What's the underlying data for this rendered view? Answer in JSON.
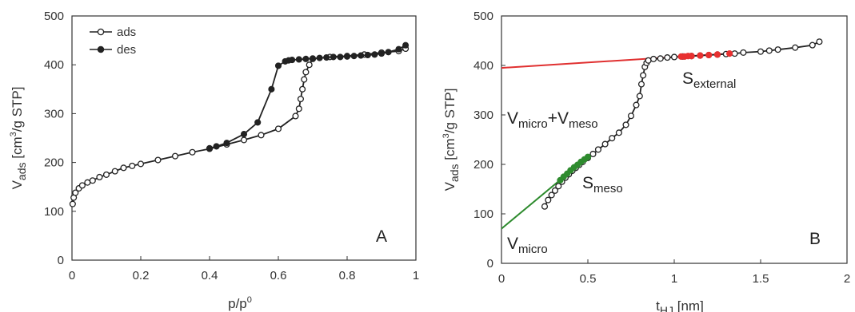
{
  "chart_data": [
    {
      "type": "line",
      "panel_label": "A",
      "xlabel_base": "p/p",
      "xlabel_sup": "0",
      "ylabel_main": "V",
      "ylabel_sub": "ads",
      "ylabel_rest1": " [cm",
      "ylabel_sup": "3",
      "ylabel_rest2": "/g STP]",
      "xlim": [
        0,
        1
      ],
      "ylim": [
        0,
        500
      ],
      "xticks": [
        "0",
        "0.2",
        "0.4",
        "0.6",
        "0.8",
        "1"
      ],
      "yticks": [
        "0",
        "100",
        "200",
        "300",
        "400",
        "500"
      ],
      "legend": [
        "ads",
        "des"
      ],
      "series": [
        {
          "name": "ads",
          "marker": "open-circle",
          "x": [
            0.002,
            0.005,
            0.01,
            0.02,
            0.03,
            0.045,
            0.06,
            0.08,
            0.1,
            0.125,
            0.15,
            0.175,
            0.2,
            0.25,
            0.3,
            0.35,
            0.4,
            0.45,
            0.5,
            0.55,
            0.6,
            0.65,
            0.66,
            0.665,
            0.67,
            0.675,
            0.68,
            0.69,
            0.7,
            0.75,
            0.8,
            0.85,
            0.9,
            0.95,
            0.97
          ],
          "y": [
            115,
            128,
            138,
            147,
            153,
            159,
            163,
            170,
            175,
            182,
            189,
            193,
            197,
            205,
            213,
            221,
            228,
            237,
            246,
            256,
            269,
            295,
            310,
            330,
            350,
            370,
            385,
            400,
            412,
            416,
            418,
            421,
            425,
            428,
            433
          ]
        },
        {
          "name": "des",
          "marker": "filled-circle",
          "x": [
            0.97,
            0.95,
            0.92,
            0.9,
            0.88,
            0.86,
            0.84,
            0.82,
            0.8,
            0.78,
            0.76,
            0.74,
            0.72,
            0.7,
            0.68,
            0.66,
            0.64,
            0.63,
            0.62,
            0.6,
            0.58,
            0.54,
            0.5,
            0.45,
            0.42,
            0.4
          ],
          "y": [
            440,
            432,
            426,
            423,
            421,
            420,
            419,
            418,
            417,
            416,
            416,
            415,
            414,
            413,
            412,
            411,
            410,
            409,
            407,
            398,
            350,
            282,
            258,
            240,
            233,
            229
          ]
        }
      ]
    },
    {
      "type": "line",
      "panel_label": "B",
      "xlabel_main": "t",
      "xlabel_sub": "HJ",
      "xlabel_rest": " [nm]",
      "ylabel_main": "V",
      "ylabel_sub": "ads",
      "ylabel_rest1": " [cm",
      "ylabel_sup": "3",
      "ylabel_rest2": "/g STP]",
      "xlim": [
        0,
        2
      ],
      "ylim": [
        0,
        500
      ],
      "xticks": [
        "0",
        "0.5",
        "1",
        "1.5",
        "2"
      ],
      "yticks": [
        "0",
        "100",
        "200",
        "300",
        "400",
        "500"
      ],
      "series": [
        {
          "name": "t-plot",
          "marker": "open-circle",
          "x": [
            0.25,
            0.27,
            0.29,
            0.31,
            0.33,
            0.35,
            0.37,
            0.39,
            0.41,
            0.43,
            0.45,
            0.47,
            0.5,
            0.53,
            0.56,
            0.6,
            0.64,
            0.68,
            0.72,
            0.75,
            0.78,
            0.8,
            0.81,
            0.82,
            0.83,
            0.84,
            0.85,
            0.88,
            0.92,
            0.96,
            1.0,
            1.05,
            1.1,
            1.15,
            1.2,
            1.25,
            1.3,
            1.35,
            1.4,
            1.5,
            1.55,
            1.6,
            1.7,
            1.8,
            1.84
          ],
          "y": [
            115,
            128,
            138,
            147,
            156,
            165,
            173,
            180,
            187,
            193,
            199,
            205,
            213,
            221,
            230,
            241,
            253,
            264,
            280,
            298,
            320,
            338,
            362,
            380,
            397,
            405,
            410,
            413,
            414,
            416,
            417,
            418,
            419,
            420,
            421,
            422,
            423,
            424,
            426,
            428,
            430,
            432,
            436,
            441,
            448
          ]
        }
      ],
      "highlighted_points": [
        {
          "name": "meso",
          "color": "#2e8b2e",
          "x": [
            0.34,
            0.36,
            0.38,
            0.4,
            0.42,
            0.44,
            0.46,
            0.48,
            0.5
          ],
          "y": [
            168,
            175,
            181,
            188,
            194,
            199,
            205,
            210,
            215
          ]
        },
        {
          "name": "external",
          "color": "#e83030",
          "x": [
            1.04,
            1.06,
            1.08,
            1.1,
            1.15,
            1.2,
            1.25,
            1.32
          ],
          "y": [
            418,
            418,
            419,
            419,
            420,
            421,
            422,
            424
          ]
        }
      ],
      "fit_lines": [
        {
          "name": "external-fit",
          "color": "#e03030",
          "x": [
            0,
            1.32
          ],
          "y": [
            395,
            424
          ]
        },
        {
          "name": "meso-fit",
          "color": "#2e8b2e",
          "x": [
            0,
            0.5
          ],
          "y": [
            70,
            215
          ]
        }
      ],
      "annotations": {
        "vmv_a": "V",
        "vmv_a_sub": "micro",
        "vmv_plus": "+V",
        "vmv_b_sub": "meso",
        "s_ext": "S",
        "s_ext_sub": "external",
        "s_meso": "S",
        "s_meso_sub": "meso",
        "vmicro": "V",
        "vmicro_sub": "micro"
      }
    }
  ]
}
